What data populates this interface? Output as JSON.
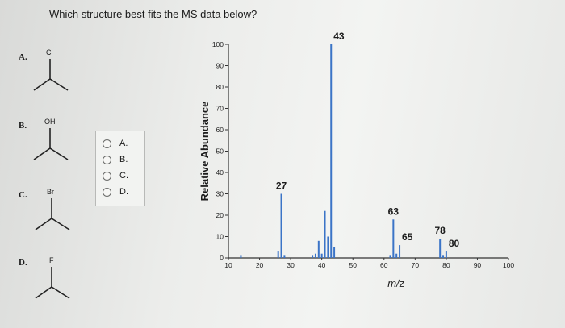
{
  "question": "Which structure best fits the MS data below?",
  "structures": [
    {
      "letter": "A.",
      "substituent": "Cl"
    },
    {
      "letter": "B.",
      "substituent": "OH"
    },
    {
      "letter": "C.",
      "substituent": "Br"
    },
    {
      "letter": "D.",
      "substituent": "F"
    }
  ],
  "answer_choices": [
    {
      "label": "A.",
      "selected": false
    },
    {
      "label": "B.",
      "selected": false
    },
    {
      "label": "C.",
      "selected": false
    },
    {
      "label": "D.",
      "selected": false
    }
  ],
  "chart_data": {
    "type": "bar",
    "xlabel": "m/z",
    "ylabel": "Relative Abundance",
    "xlim": [
      10,
      100
    ],
    "ylim": [
      0,
      100
    ],
    "xticks": [
      10,
      20,
      30,
      40,
      50,
      60,
      70,
      80,
      90,
      100
    ],
    "yticks": [
      0,
      10,
      20,
      30,
      40,
      50,
      60,
      70,
      80,
      90,
      100
    ],
    "peaks": [
      {
        "mz": 14,
        "value": 1
      },
      {
        "mz": 26,
        "value": 3
      },
      {
        "mz": 27,
        "value": 30,
        "label": "27"
      },
      {
        "mz": 28,
        "value": 1
      },
      {
        "mz": 37,
        "value": 1
      },
      {
        "mz": 38,
        "value": 2
      },
      {
        "mz": 39,
        "value": 8
      },
      {
        "mz": 40,
        "value": 2
      },
      {
        "mz": 41,
        "value": 22
      },
      {
        "mz": 42,
        "value": 10
      },
      {
        "mz": 43,
        "value": 100,
        "label": "43"
      },
      {
        "mz": 44,
        "value": 5
      },
      {
        "mz": 62,
        "value": 1
      },
      {
        "mz": 63,
        "value": 18,
        "label": "63"
      },
      {
        "mz": 64,
        "value": 2
      },
      {
        "mz": 65,
        "value": 6,
        "label": "65"
      },
      {
        "mz": 78,
        "value": 9,
        "label": "78"
      },
      {
        "mz": 79,
        "value": 1
      },
      {
        "mz": 80,
        "value": 3,
        "label": "80"
      }
    ],
    "colors": {
      "bar": "#3b74c7",
      "axis": "#333333"
    }
  }
}
